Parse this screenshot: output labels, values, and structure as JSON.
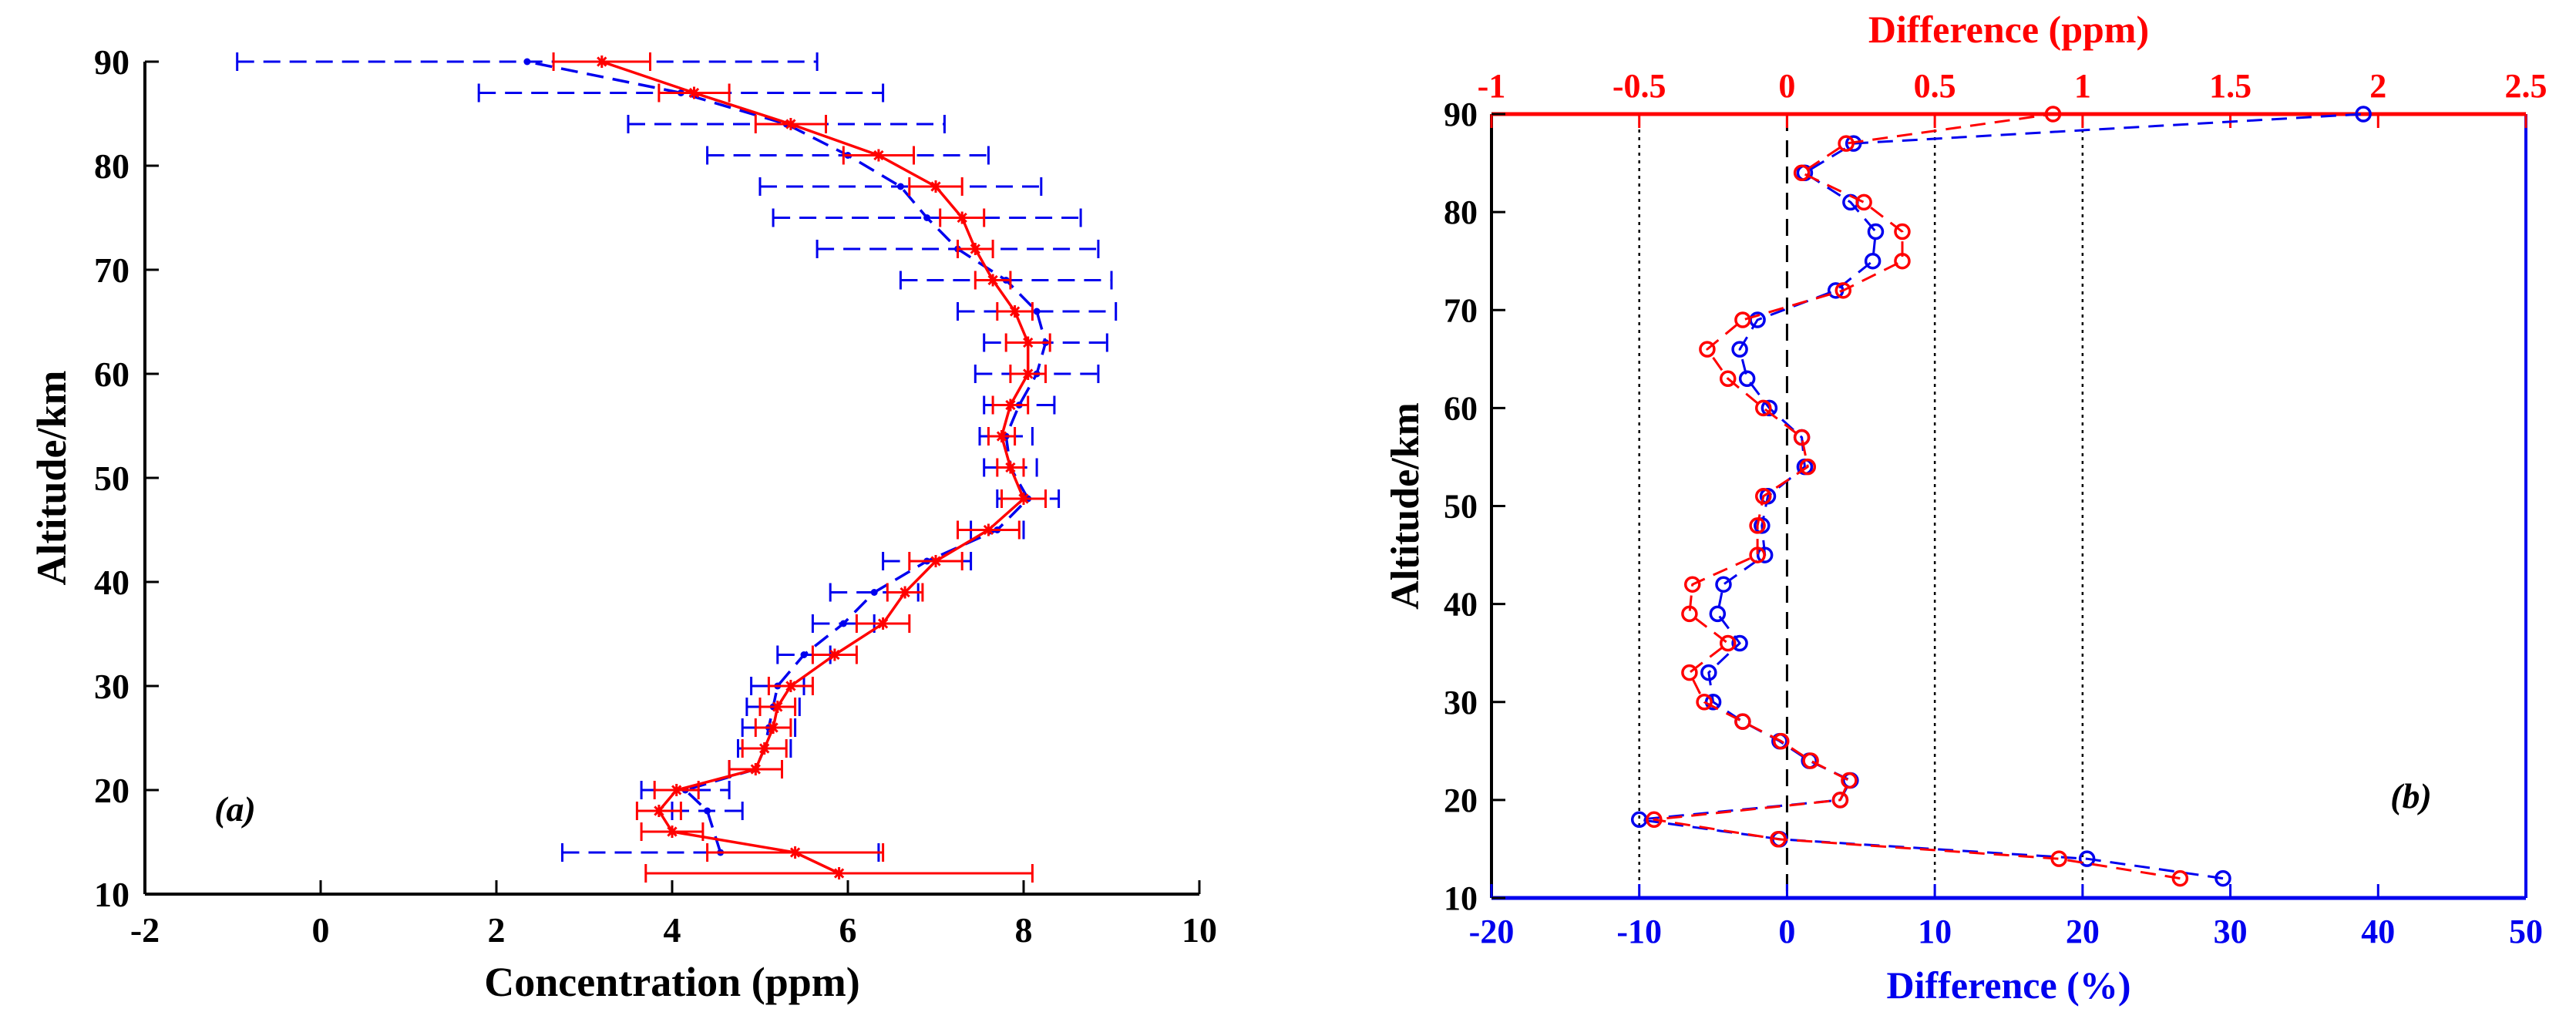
{
  "figure": {
    "panel_a_label": "(a)",
    "panel_b_label": "(b)"
  },
  "colors": {
    "red": "#ff0000",
    "blue": "#0000ee",
    "axis": "#000000"
  },
  "chart_data": [
    {
      "id": "a",
      "type": "line",
      "orientation": "vertical-profile",
      "xlabel": "Concentration (ppm)",
      "ylabel": "Altitude/km",
      "xlim": [
        -2,
        10
      ],
      "ylim": [
        10,
        90
      ],
      "xticks": [
        -2,
        0,
        2,
        4,
        6,
        8,
        10
      ],
      "yticks": [
        10,
        20,
        30,
        40,
        50,
        60,
        70,
        80,
        90
      ],
      "grid": false,
      "series": [
        {
          "style": "dashed",
          "marker": "dot",
          "color": "#0000ee",
          "points": [
            {
              "x": 4.55,
              "y": 14,
              "err": 1.8
            },
            {
              "x": 4.4,
              "y": 18,
              "err": 0.4
            },
            {
              "x": 4.15,
              "y": 20,
              "err": 0.5
            },
            {
              "x": 4.95,
              "y": 22,
              "err": 0.3
            },
            {
              "x": 5.05,
              "y": 24,
              "err": 0.3
            },
            {
              "x": 5.1,
              "y": 26,
              "err": 0.3
            },
            {
              "x": 5.15,
              "y": 28,
              "err": 0.3
            },
            {
              "x": 5.2,
              "y": 30,
              "err": 0.3
            },
            {
              "x": 5.5,
              "y": 33,
              "err": 0.3
            },
            {
              "x": 5.95,
              "y": 36,
              "err": 0.35
            },
            {
              "x": 6.3,
              "y": 39,
              "err": 0.5
            },
            {
              "x": 6.9,
              "y": 42,
              "err": 0.5
            },
            {
              "x": 7.7,
              "y": 45,
              "err": 0.3
            },
            {
              "x": 8.05,
              "y": 48,
              "err": 0.35
            },
            {
              "x": 7.85,
              "y": 51,
              "err": 0.3
            },
            {
              "x": 7.8,
              "y": 54,
              "err": 0.3
            },
            {
              "x": 7.95,
              "y": 57,
              "err": 0.4
            },
            {
              "x": 8.15,
              "y": 60,
              "err": 0.7
            },
            {
              "x": 8.25,
              "y": 63,
              "err": 0.7
            },
            {
              "x": 8.15,
              "y": 66,
              "err": 0.9
            },
            {
              "x": 7.8,
              "y": 69,
              "err": 1.2
            },
            {
              "x": 7.25,
              "y": 72,
              "err": 1.6
            },
            {
              "x": 6.9,
              "y": 75,
              "err": 1.75
            },
            {
              "x": 6.6,
              "y": 78,
              "err": 1.6
            },
            {
              "x": 6.0,
              "y": 81,
              "err": 1.6
            },
            {
              "x": 5.3,
              "y": 84,
              "err": 1.8
            },
            {
              "x": 4.1,
              "y": 87,
              "err": 2.3
            },
            {
              "x": 2.35,
              "y": 90,
              "err": 3.3
            }
          ]
        },
        {
          "style": "solid",
          "marker": "asterisk",
          "color": "#ff0000",
          "points": [
            {
              "x": 5.9,
              "y": 12,
              "err": 2.2
            },
            {
              "x": 5.4,
              "y": 14,
              "err": 1.0
            },
            {
              "x": 4.0,
              "y": 16,
              "err": 0.35
            },
            {
              "x": 3.85,
              "y": 18,
              "err": 0.25
            },
            {
              "x": 4.05,
              "y": 20,
              "err": 0.25
            },
            {
              "x": 4.95,
              "y": 22,
              "err": 0.3
            },
            {
              "x": 5.05,
              "y": 24,
              "err": 0.25
            },
            {
              "x": 5.15,
              "y": 26,
              "err": 0.2
            },
            {
              "x": 5.2,
              "y": 28,
              "err": 0.2
            },
            {
              "x": 5.35,
              "y": 30,
              "err": 0.25
            },
            {
              "x": 5.85,
              "y": 33,
              "err": 0.25
            },
            {
              "x": 6.4,
              "y": 36,
              "err": 0.3
            },
            {
              "x": 6.65,
              "y": 39,
              "err": 0.2
            },
            {
              "x": 7.0,
              "y": 42,
              "err": 0.3
            },
            {
              "x": 7.6,
              "y": 45,
              "err": 0.35
            },
            {
              "x": 8.0,
              "y": 48,
              "err": 0.25
            },
            {
              "x": 7.85,
              "y": 51,
              "err": 0.15
            },
            {
              "x": 7.75,
              "y": 54,
              "err": 0.15
            },
            {
              "x": 7.85,
              "y": 57,
              "err": 0.2
            },
            {
              "x": 8.05,
              "y": 60,
              "err": 0.2
            },
            {
              "x": 8.05,
              "y": 63,
              "err": 0.25
            },
            {
              "x": 7.9,
              "y": 66,
              "err": 0.2
            },
            {
              "x": 7.65,
              "y": 69,
              "err": 0.2
            },
            {
              "x": 7.45,
              "y": 72,
              "err": 0.2
            },
            {
              "x": 7.3,
              "y": 75,
              "err": 0.25
            },
            {
              "x": 7.0,
              "y": 78,
              "err": 0.3
            },
            {
              "x": 6.35,
              "y": 81,
              "err": 0.4
            },
            {
              "x": 5.35,
              "y": 84,
              "err": 0.4
            },
            {
              "x": 4.25,
              "y": 87,
              "err": 0.4
            },
            {
              "x": 3.2,
              "y": 90,
              "err": 0.55
            }
          ]
        }
      ]
    },
    {
      "id": "b",
      "type": "line",
      "orientation": "vertical-profile",
      "xlabel": "Difference (%)",
      "xlabel_top": "Difference (ppm)",
      "ylabel": "Altitude/km",
      "xlim": [
        -20,
        50
      ],
      "xlim_top": [
        -1,
        2.5
      ],
      "ylim": [
        10,
        90
      ],
      "xticks": [
        -20,
        -10,
        0,
        10,
        20,
        30,
        40,
        50
      ],
      "xticks_top": [
        "-1",
        "-0.5",
        "0",
        "0.5",
        "1",
        "1.5",
        "2",
        "2.5"
      ],
      "yticks": [
        10,
        20,
        30,
        40,
        50,
        60,
        70,
        80,
        90
      ],
      "reference_lines_percent": {
        "dashed": [
          0
        ],
        "dotted": [
          -10,
          10,
          20
        ]
      },
      "grid": false,
      "series": [
        {
          "axis": "bottom",
          "unit": "%",
          "style": "dashed",
          "marker": "circle",
          "color": "#0000ee",
          "points": [
            {
              "x": 29.5,
              "y": 12
            },
            {
              "x": 20.3,
              "y": 14
            },
            {
              "x": -0.5,
              "y": 16
            },
            {
              "x": -10,
              "y": 18
            },
            {
              "x": 3.6,
              "y": 20
            },
            {
              "x": 4.3,
              "y": 22
            },
            {
              "x": 1.5,
              "y": 24
            },
            {
              "x": -0.5,
              "y": 26
            },
            {
              "x": -3,
              "y": 28
            },
            {
              "x": -5,
              "y": 30
            },
            {
              "x": -5.3,
              "y": 33
            },
            {
              "x": -3.2,
              "y": 36
            },
            {
              "x": -4.7,
              "y": 39
            },
            {
              "x": -4.3,
              "y": 42
            },
            {
              "x": -1.5,
              "y": 45
            },
            {
              "x": -1.7,
              "y": 48
            },
            {
              "x": -1.3,
              "y": 51
            },
            {
              "x": 1.2,
              "y": 54
            },
            {
              "x": 1,
              "y": 57
            },
            {
              "x": -1.2,
              "y": 60
            },
            {
              "x": -2.7,
              "y": 63
            },
            {
              "x": -3.2,
              "y": 66
            },
            {
              "x": -2,
              "y": 69
            },
            {
              "x": 3.3,
              "y": 72
            },
            {
              "x": 5.8,
              "y": 75
            },
            {
              "x": 6,
              "y": 78
            },
            {
              "x": 4.3,
              "y": 81
            },
            {
              "x": 1.2,
              "y": 84
            },
            {
              "x": 4.5,
              "y": 87
            },
            {
              "x": 39,
              "y": 90
            }
          ]
        },
        {
          "axis": "top",
          "unit": "ppm",
          "style": "dashed",
          "marker": "circle",
          "color": "#ff0000",
          "points": [
            {
              "x": 1.33,
              "y": 12
            },
            {
              "x": 0.92,
              "y": 14
            },
            {
              "x": -0.03,
              "y": 16
            },
            {
              "x": -0.45,
              "y": 18
            },
            {
              "x": 0.18,
              "y": 20
            },
            {
              "x": 0.21,
              "y": 22
            },
            {
              "x": 0.08,
              "y": 24
            },
            {
              "x": -0.02,
              "y": 26
            },
            {
              "x": -0.15,
              "y": 28
            },
            {
              "x": -0.28,
              "y": 30
            },
            {
              "x": -0.33,
              "y": 33
            },
            {
              "x": -0.2,
              "y": 36
            },
            {
              "x": -0.33,
              "y": 39
            },
            {
              "x": -0.32,
              "y": 42
            },
            {
              "x": -0.1,
              "y": 45
            },
            {
              "x": -0.1,
              "y": 48
            },
            {
              "x": -0.08,
              "y": 51
            },
            {
              "x": 0.07,
              "y": 54
            },
            {
              "x": 0.05,
              "y": 57
            },
            {
              "x": -0.08,
              "y": 60
            },
            {
              "x": -0.2,
              "y": 63
            },
            {
              "x": -0.27,
              "y": 66
            },
            {
              "x": -0.15,
              "y": 69
            },
            {
              "x": 0.19,
              "y": 72
            },
            {
              "x": 0.39,
              "y": 75
            },
            {
              "x": 0.39,
              "y": 78
            },
            {
              "x": 0.26,
              "y": 81
            },
            {
              "x": 0.05,
              "y": 84
            },
            {
              "x": 0.2,
              "y": 87
            },
            {
              "x": 0.9,
              "y": 90
            }
          ]
        }
      ]
    }
  ]
}
